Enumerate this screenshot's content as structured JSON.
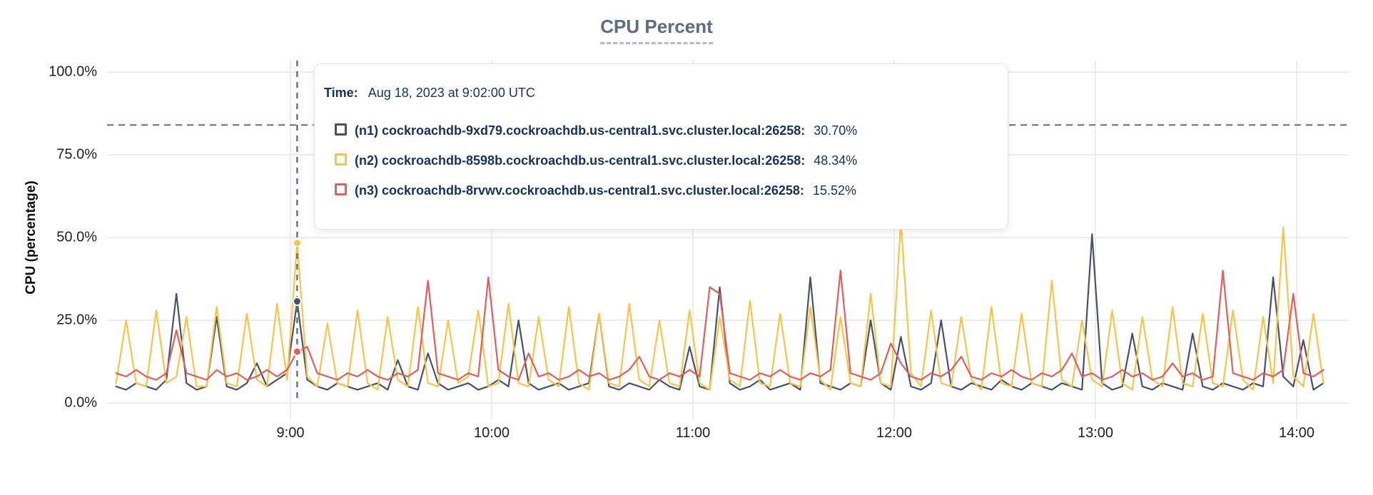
{
  "chart_data": {
    "type": "line",
    "title": "CPU Percent",
    "ylabel": "CPU (percentage)",
    "ylim": [
      0,
      100
    ],
    "grid": true,
    "y_ticks": [
      {
        "label": "100.0%",
        "pct": 100
      },
      {
        "label": "75.0%",
        "pct": 75
      },
      {
        "label": "50.0%",
        "pct": 50
      },
      {
        "label": "25.0%",
        "pct": 25
      },
      {
        "label": "0.0%",
        "pct": 0
      }
    ],
    "x_ticks": [
      {
        "label": "9:00",
        "min": 540
      },
      {
        "label": "10:00",
        "min": 600
      },
      {
        "label": "11:00",
        "min": 660
      },
      {
        "label": "12:00",
        "min": 720
      },
      {
        "label": "13:00",
        "min": 780
      },
      {
        "label": "14:00",
        "min": 840
      }
    ],
    "x_start_min": 488,
    "x_step_min": 3,
    "threshold_pct": 84,
    "cursor": {
      "time_min": 542,
      "time_text": "Aug 18, 2023 at 9:02:00 UTC"
    },
    "colors": {
      "crosshair": "#5b7282",
      "gridline": "#ececec"
    },
    "series": [
      {
        "name": "(n1) cockroachdb-9xd79.cockroachdb.us-central1.svc.cluster.local:26258",
        "color": "#475169",
        "cursor_value_pct": 30.7,
        "values": [
          5,
          4,
          6,
          5,
          4,
          7,
          33,
          6,
          4,
          5,
          26,
          5,
          4,
          6,
          12,
          5,
          7,
          9,
          30.7,
          7,
          5,
          4,
          6,
          5,
          4,
          5,
          6,
          4,
          13,
          5,
          4,
          15,
          6,
          4,
          5,
          6,
          4,
          5,
          7,
          5,
          25,
          6,
          4,
          5,
          6,
          4,
          5,
          6,
          27,
          5,
          4,
          6,
          5,
          4,
          7,
          5,
          4,
          17,
          5,
          4,
          35,
          6,
          4,
          5,
          7,
          4,
          5,
          6,
          4,
          38,
          6,
          5,
          4,
          6,
          5,
          25,
          6,
          4,
          20,
          5,
          4,
          6,
          25,
          5,
          4,
          6,
          5,
          4,
          7,
          5,
          4,
          6,
          5,
          4,
          6,
          5,
          4,
          51,
          6,
          4,
          5,
          21,
          5,
          4,
          6,
          5,
          4,
          21,
          5,
          4,
          6,
          5,
          4,
          6,
          5,
          38,
          8,
          5,
          19,
          4,
          6
        ]
      },
      {
        "name": "(n2) cockroachdb-8598b.cockroachdb.us-central1.svc.cluster.local:26258",
        "color": "#f5c643",
        "cursor_value_pct": 48.34,
        "values": [
          6,
          25,
          6,
          5,
          28,
          6,
          8,
          26,
          5,
          5,
          29,
          6,
          5,
          27,
          7,
          5,
          30,
          7,
          48.34,
          8,
          5,
          24,
          6,
          5,
          28,
          6,
          4,
          26,
          7,
          5,
          29,
          6,
          5,
          25,
          6,
          8,
          28,
          5,
          6,
          30,
          6,
          5,
          26,
          7,
          5,
          29,
          6,
          4,
          27,
          6,
          5,
          30,
          7,
          5,
          25,
          6,
          5,
          28,
          6,
          4,
          26,
          7,
          5,
          31,
          6,
          5,
          27,
          6,
          5,
          29,
          7,
          4,
          26,
          6,
          5,
          33,
          6,
          5,
          55,
          9,
          5,
          28,
          6,
          5,
          26,
          7,
          4,
          29,
          6,
          5,
          27,
          6,
          5,
          37,
          7,
          5,
          25,
          7,
          5,
          28,
          6,
          4,
          26,
          7,
          5,
          29,
          6,
          5,
          27,
          6,
          5,
          28,
          7,
          4,
          26,
          6,
          53,
          8,
          5,
          27,
          6
        ]
      },
      {
        "name": "(n3) cockroachdb-8rvwv.cockroachdb.us-central1.svc.cluster.local:26258",
        "color": "#e05e5c",
        "cursor_value_pct": 15.52,
        "values": [
          9,
          8,
          10,
          8,
          7,
          9,
          22,
          9,
          8,
          7,
          10,
          8,
          9,
          7,
          8,
          10,
          8,
          10,
          15.52,
          17,
          9,
          8,
          7,
          9,
          8,
          10,
          8,
          7,
          9,
          8,
          10,
          37,
          9,
          8,
          7,
          9,
          8,
          38,
          10,
          8,
          7,
          15,
          8,
          9,
          7,
          8,
          10,
          8,
          9,
          7,
          8,
          10,
          14,
          8,
          7,
          9,
          8,
          10,
          8,
          35,
          33,
          9,
          8,
          7,
          9,
          8,
          10,
          8,
          7,
          9,
          8,
          10,
          40,
          9,
          8,
          7,
          9,
          18,
          12,
          8,
          7,
          9,
          8,
          10,
          14,
          8,
          7,
          9,
          8,
          10,
          8,
          7,
          9,
          8,
          10,
          15,
          8,
          9,
          7,
          8,
          10,
          8,
          9,
          7,
          8,
          12,
          8,
          9,
          7,
          8,
          40,
          9,
          8,
          7,
          9,
          8,
          10,
          33,
          9,
          8,
          10
        ]
      }
    ]
  },
  "tooltip": {
    "time_label": "Time:",
    "time_value": "Aug 18, 2023 at 9:02:00 UTC",
    "rows": [
      {
        "label": "(n1) cockroachdb-9xd79.cockroachdb.us-central1.svc.cluster.local:26258:",
        "value": "30.70%"
      },
      {
        "label": "(n2) cockroachdb-8598b.cockroachdb.us-central1.svc.cluster.local:26258:",
        "value": "48.34%"
      },
      {
        "label": "(n3) cockroachdb-8rvwv.cockroachdb.us-central1.svc.cluster.local:26258:",
        "value": "15.52%"
      }
    ]
  }
}
